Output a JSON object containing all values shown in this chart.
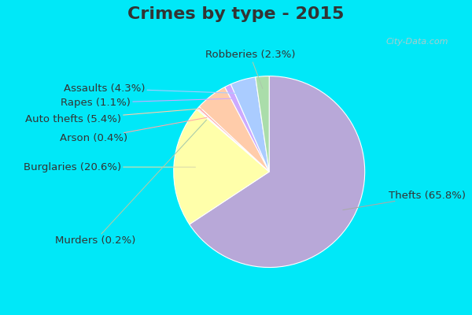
{
  "title": "Crimes by type - 2015",
  "title_color": "#333333",
  "slices": [
    {
      "label": "Thefts (65.8%)",
      "value": 65.8,
      "color": "#b8a8d8"
    },
    {
      "label": "Burglaries (20.6%)",
      "value": 20.6,
      "color": "#ffffaa"
    },
    {
      "label": "Murders (0.2%)",
      "value": 0.2,
      "color": "#c8e8c8"
    },
    {
      "label": "Arson (0.4%)",
      "value": 0.4,
      "color": "#ffaaaa"
    },
    {
      "label": "Auto thefts (5.4%)",
      "value": 5.4,
      "color": "#ffccaa"
    },
    {
      "label": "Rapes (1.1%)",
      "value": 1.1,
      "color": "#ccaaff"
    },
    {
      "label": "Assaults (4.3%)",
      "value": 4.3,
      "color": "#aaccff"
    },
    {
      "label": "Robberies (2.3%)",
      "value": 2.3,
      "color": "#aaddaa"
    }
  ],
  "bg_color": "#d0eedd",
  "outer_bg": "#00e8f8",
  "title_fontsize": 16,
  "label_fontsize": 9.5,
  "watermark": "City-Data.com",
  "watermark_color": "#aacccc"
}
